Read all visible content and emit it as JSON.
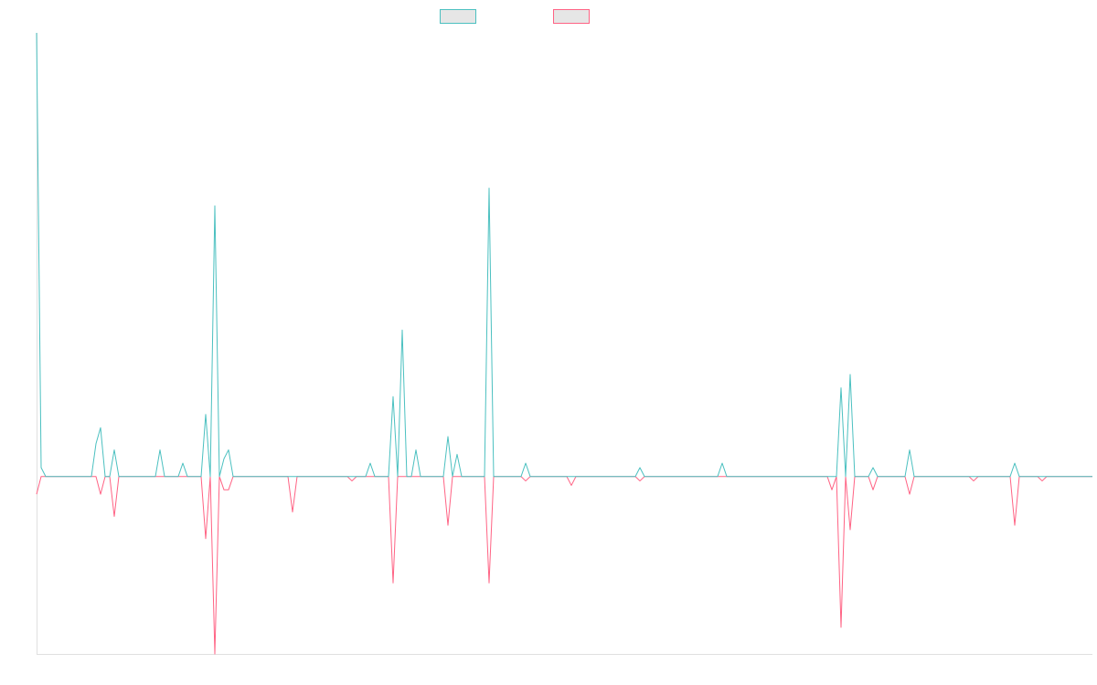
{
  "chart_data": {
    "type": "line",
    "ylim": [
      -40,
      100
    ],
    "series": [
      {
        "color": "#4bc0c0",
        "values": [
          100,
          2,
          0,
          0,
          0,
          0,
          0,
          0,
          0,
          0,
          0,
          0,
          0,
          7.4,
          11,
          0,
          0,
          6,
          0,
          0,
          0,
          0,
          0,
          0,
          0,
          0,
          0,
          6,
          0,
          0,
          0,
          0,
          3,
          0,
          0,
          0,
          0,
          14,
          0,
          61,
          0,
          4,
          6,
          0,
          0,
          0,
          0,
          0,
          0,
          0,
          0,
          0,
          0,
          0,
          0,
          0,
          0,
          0,
          0,
          0,
          0,
          0,
          0,
          0,
          0,
          0,
          0,
          0,
          0,
          0,
          0,
          0,
          0,
          3,
          0,
          0,
          0,
          0,
          18,
          0,
          33,
          0,
          0,
          6,
          0,
          0,
          0,
          0,
          0,
          0,
          9,
          0,
          5,
          0,
          0,
          0,
          0,
          0,
          0,
          65,
          0,
          0,
          0,
          0,
          0,
          0,
          0,
          3,
          0,
          0,
          0,
          0,
          0,
          0,
          0,
          0,
          0,
          0,
          0,
          0,
          0,
          0,
          0,
          0,
          0,
          0,
          0,
          0,
          0,
          0,
          0,
          0,
          2,
          0,
          0,
          0,
          0,
          0,
          0,
          0,
          0,
          0,
          0,
          0,
          0,
          0,
          0,
          0,
          0,
          0,
          3,
          0,
          0,
          0,
          0,
          0,
          0,
          0,
          0,
          0,
          0,
          0,
          0,
          0,
          0,
          0,
          0,
          0,
          0,
          0,
          0,
          0,
          0,
          0,
          0,
          0,
          20,
          0,
          23,
          0,
          0,
          0,
          0,
          2,
          0,
          0,
          0,
          0,
          0,
          0,
          0,
          6,
          0,
          0,
          0,
          0,
          0,
          0,
          0,
          0,
          0,
          0,
          0,
          0,
          0,
          0,
          0,
          0,
          0,
          0,
          0,
          0,
          0,
          0,
          3,
          0,
          0,
          0,
          0,
          0,
          0,
          0,
          0,
          0,
          0,
          0,
          0,
          0,
          0,
          0,
          0,
          0
        ]
      },
      {
        "color": "#ff6384",
        "values": [
          -4,
          0,
          0,
          0,
          0,
          0,
          0,
          0,
          0,
          0,
          0,
          0,
          0,
          0,
          -4,
          0,
          0,
          -9,
          0,
          0,
          0,
          0,
          0,
          0,
          0,
          0,
          0,
          0,
          0,
          0,
          0,
          0,
          0,
          0,
          0,
          0,
          0,
          -14,
          0,
          -40,
          0,
          -3,
          -3,
          0,
          0,
          0,
          0,
          0,
          0,
          0,
          0,
          0,
          0,
          0,
          0,
          0,
          -8,
          0,
          0,
          0,
          0,
          0,
          0,
          0,
          0,
          0,
          0,
          0,
          0,
          -1,
          0,
          0,
          0,
          0,
          0,
          0,
          0,
          0,
          -24,
          0,
          0,
          0,
          0,
          0,
          0,
          0,
          0,
          0,
          0,
          0,
          -11,
          0,
          0,
          0,
          0,
          0,
          0,
          0,
          0,
          -24,
          0,
          0,
          0,
          0,
          0,
          0,
          0,
          -1,
          0,
          0,
          0,
          0,
          0,
          0,
          0,
          0,
          0,
          -2,
          0,
          0,
          0,
          0,
          0,
          0,
          0,
          0,
          0,
          0,
          0,
          0,
          0,
          0,
          -1,
          0,
          0,
          0,
          0,
          0,
          0,
          0,
          0,
          0,
          0,
          0,
          0,
          0,
          0,
          0,
          0,
          0,
          0,
          0,
          0,
          0,
          0,
          0,
          0,
          0,
          0,
          0,
          0,
          0,
          0,
          0,
          0,
          0,
          0,
          0,
          0,
          0,
          0,
          0,
          0,
          0,
          -3,
          0,
          -34,
          0,
          -12,
          0,
          0,
          0,
          0,
          -3,
          0,
          0,
          0,
          0,
          0,
          0,
          0,
          -4,
          0,
          0,
          0,
          0,
          0,
          0,
          0,
          0,
          0,
          0,
          0,
          0,
          0,
          -1,
          0,
          0,
          0,
          0,
          0,
          0,
          0,
          0,
          -11,
          0,
          0,
          0,
          0,
          0,
          -1,
          0,
          0,
          0,
          0,
          0,
          0,
          0,
          0,
          0,
          0,
          0
        ]
      }
    ]
  }
}
